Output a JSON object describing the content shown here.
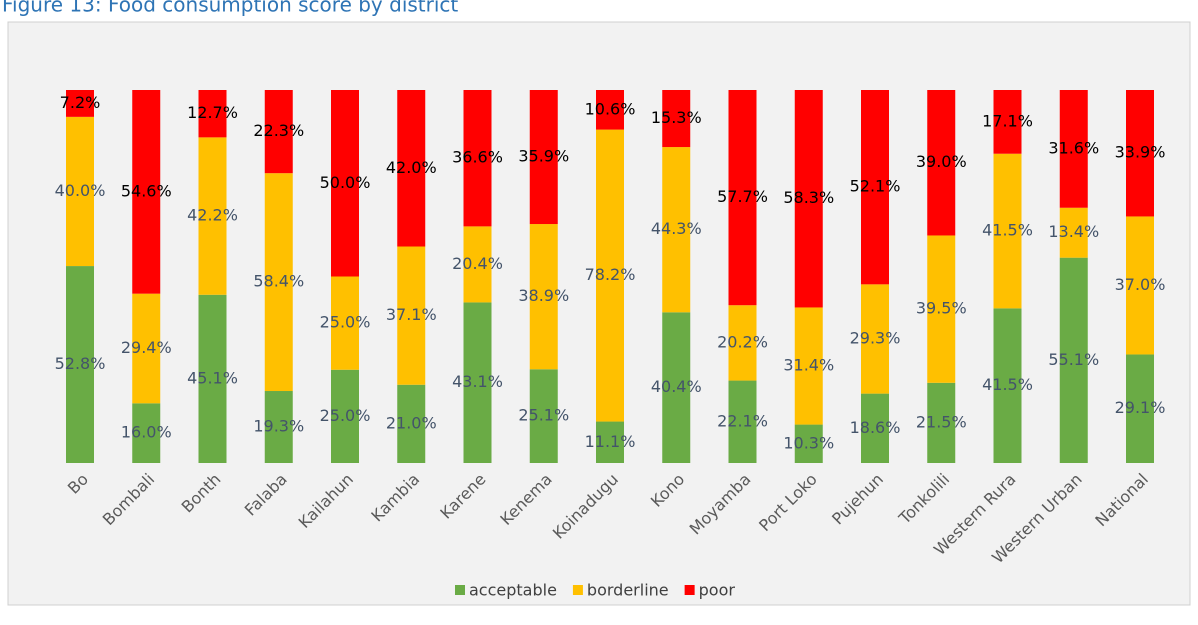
{
  "chart_data": {
    "type": "stacked_bar",
    "title": "Figure 13: Food consumption score by district",
    "categories": [
      "Bo",
      "Bombali",
      "Bonth",
      "Falaba",
      "Kailahun",
      "Kambia",
      "Karene",
      "Kenema",
      "Koinadugu",
      "Kono",
      "Moyamba",
      "Port Loko",
      "Pujehun",
      "Tonkolili",
      "Western Rura",
      "Western Urban",
      "National"
    ],
    "series": [
      {
        "name": "acceptable",
        "color": "#6aab45",
        "values": [
          52.8,
          16.0,
          45.1,
          19.3,
          25.0,
          21.0,
          43.1,
          25.1,
          11.1,
          40.4,
          22.1,
          10.3,
          18.6,
          21.5,
          41.5,
          55.1,
          29.1
        ],
        "value_labels": [
          "52.8%",
          "16.0%",
          "45.1%",
          "19.3%",
          "25.0%",
          "21.0%",
          "43.1%",
          "25.1%",
          "11.1%",
          "40.4%",
          "22.1%",
          "10.3%",
          "18.6%",
          "21.5%",
          "41.5%",
          "55.1%",
          "29.1%"
        ]
      },
      {
        "name": "borderline",
        "color": "#ffc000",
        "values": [
          40.0,
          29.4,
          42.2,
          58.4,
          25.0,
          37.1,
          20.4,
          38.9,
          78.2,
          44.3,
          20.2,
          31.4,
          29.3,
          39.5,
          41.5,
          13.4,
          37.0
        ],
        "value_labels": [
          "40.0%",
          "29.4%",
          "42.2%",
          "58.4%",
          "25.0%",
          "37.1%",
          "20.4%",
          "38.9%",
          "78.2%",
          "44.3%",
          "20.2%",
          "31.4%",
          "29.3%",
          "39.5%",
          "41.5%",
          "13.4%",
          "37.0%"
        ]
      },
      {
        "name": "poor",
        "color": "#ff0000",
        "values": [
          7.2,
          54.6,
          12.7,
          22.3,
          50.0,
          42.0,
          36.6,
          35.9,
          10.6,
          15.3,
          57.7,
          58.3,
          52.1,
          39.0,
          17.1,
          31.6,
          33.9
        ],
        "value_labels": [
          "7.2%",
          "54.6%",
          "12.7%",
          "22.3%",
          "50.0%",
          "42.0%",
          "36.6%",
          "35.9%",
          "10.6%",
          "15.3%",
          "57.7%",
          "58.3%",
          "52.1%",
          "39.0%",
          "17.1%",
          "31.6%",
          "33.9%"
        ]
      }
    ],
    "legend": "bottom"
  }
}
